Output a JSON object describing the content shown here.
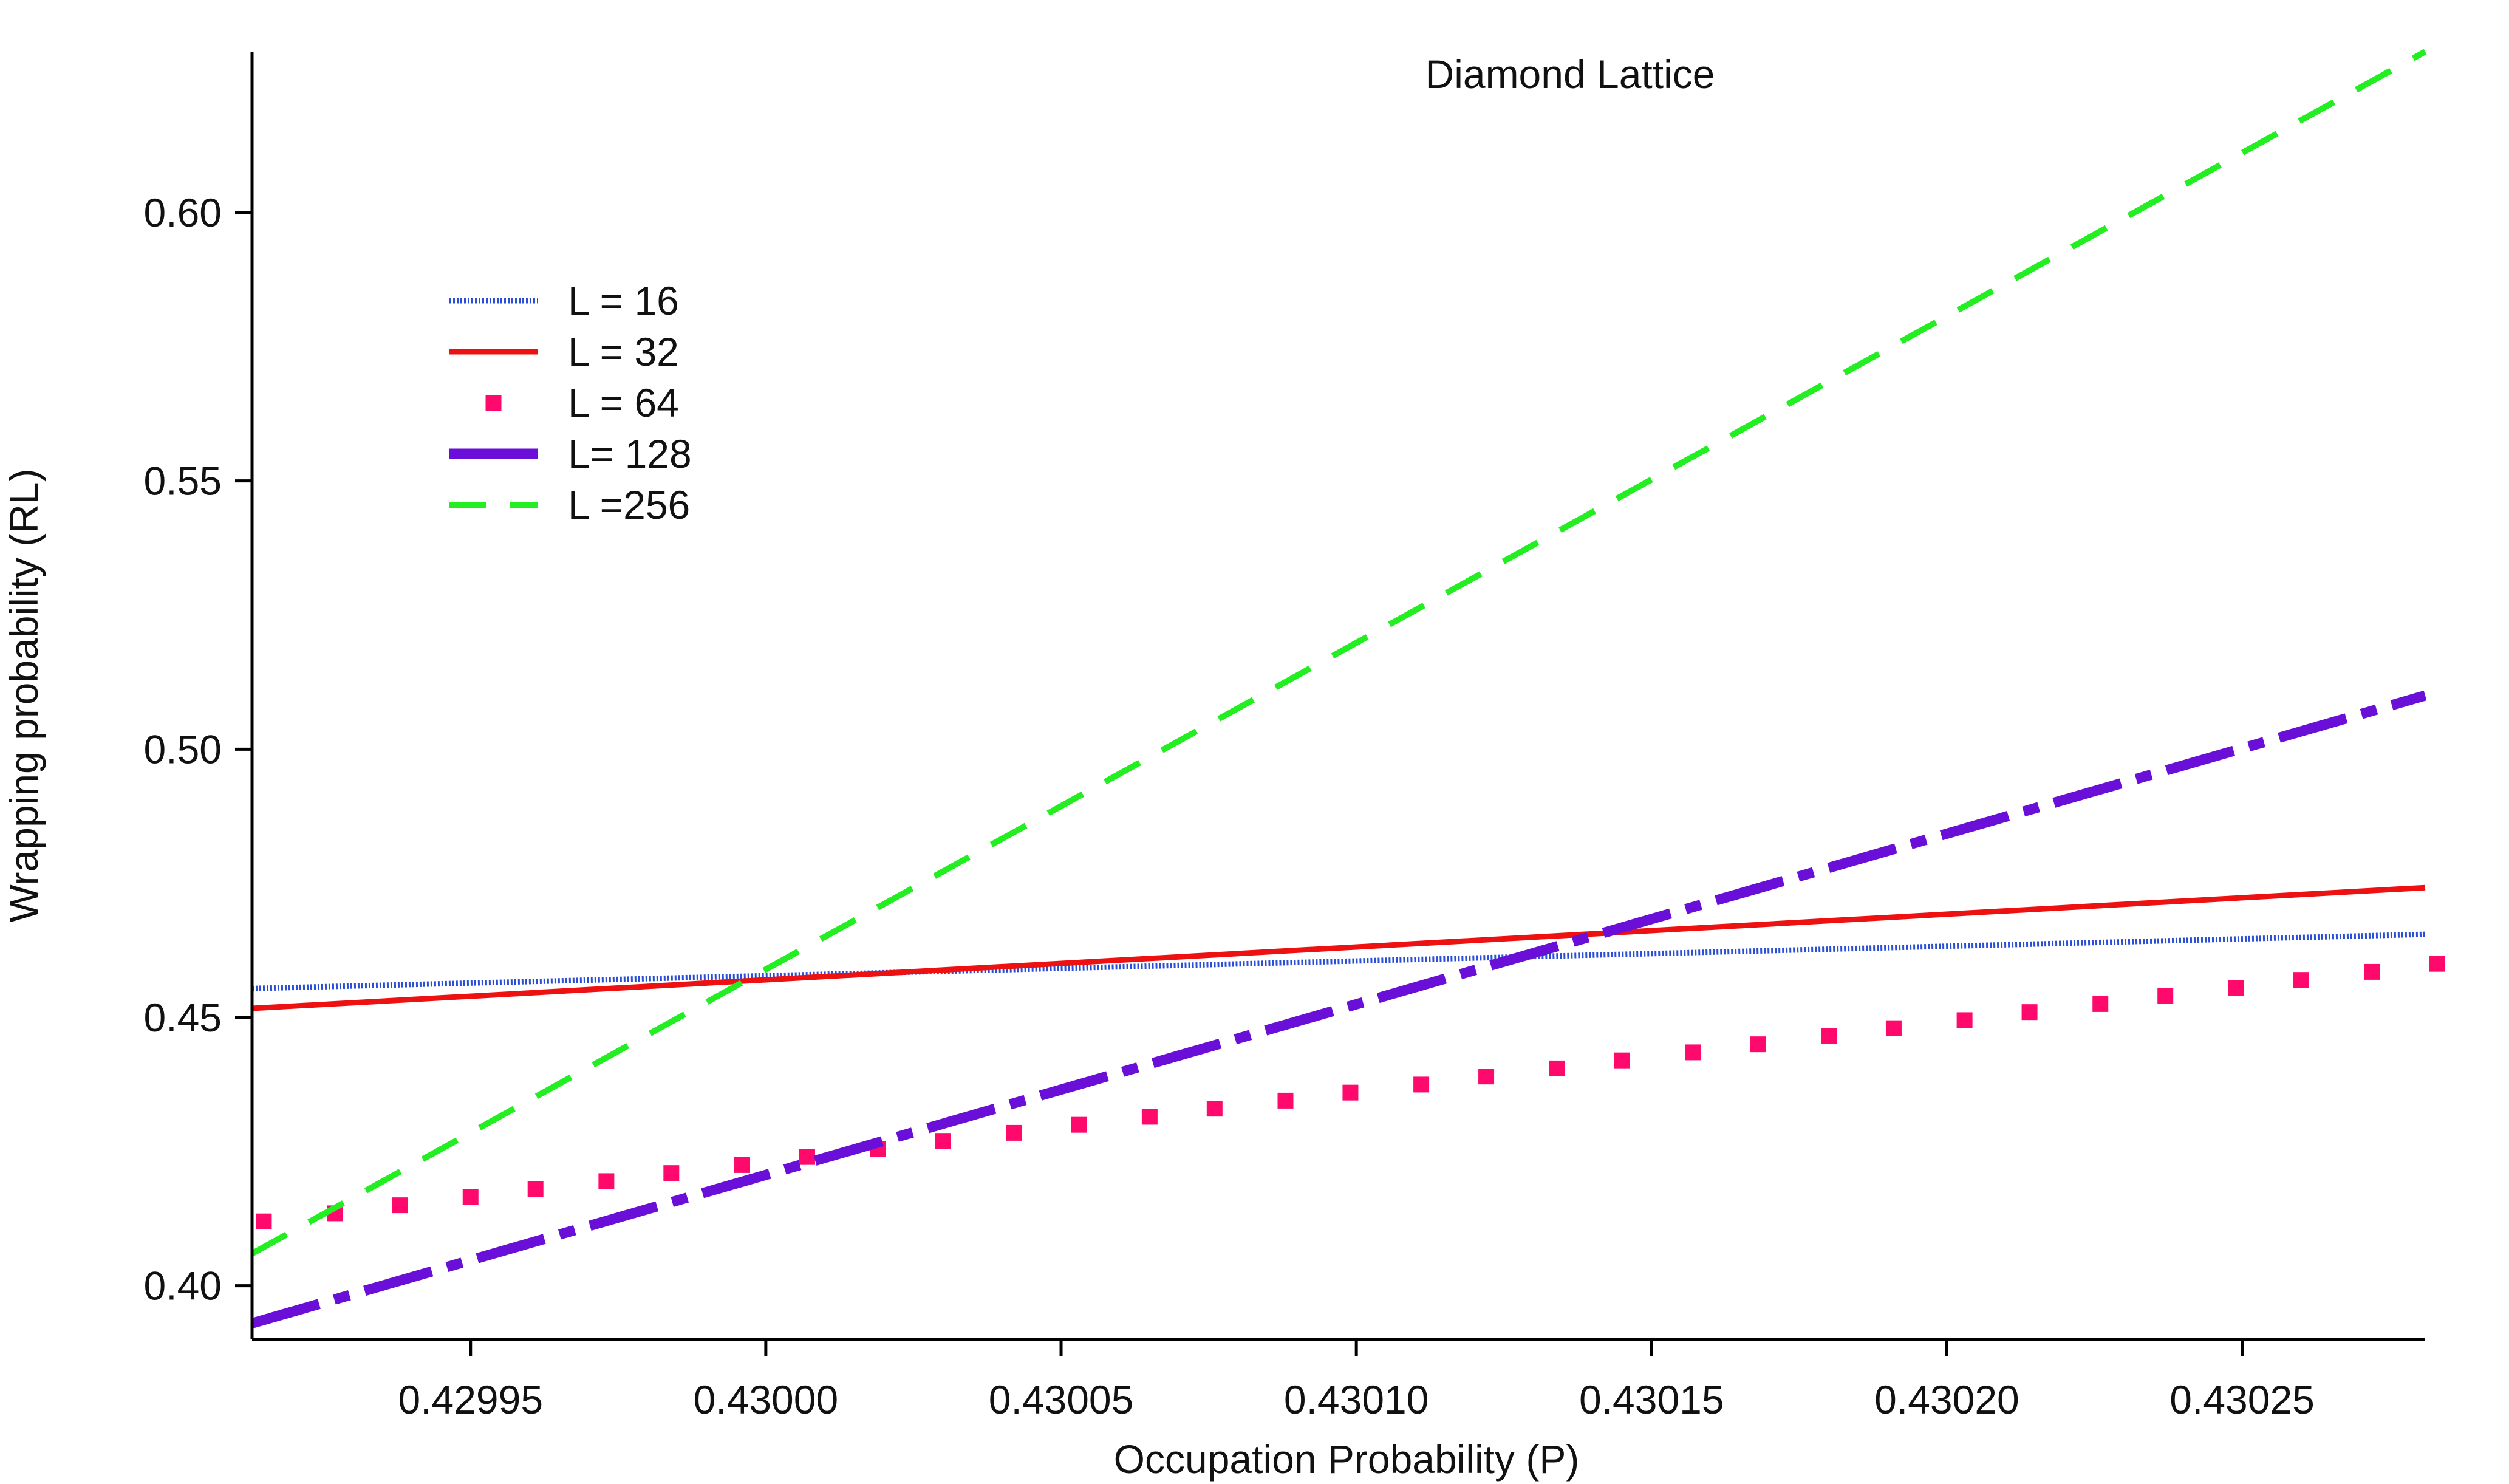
{
  "chart_data": {
    "type": "line",
    "title": "Diamond Lattice",
    "xlabel": "Occupation Probability (P)",
    "ylabel": "Wrapping probability (RL)",
    "xlim": [
      0.429913,
      0.430281
    ],
    "ylim": [
      0.39,
      0.63
    ],
    "xticks": [
      0.42995,
      0.43,
      0.43005,
      0.4301,
      0.43015,
      0.4302,
      0.43025
    ],
    "xtick_labels": [
      "0.42995",
      "0.43000",
      "0.43005",
      "0.43010",
      "0.43015",
      "0.43020",
      "0.43025"
    ],
    "yticks": [
      0.4,
      0.45,
      0.5,
      0.55,
      0.6
    ],
    "ytick_labels": [
      "0.40",
      "0.45",
      "0.50",
      "0.55",
      "0.60"
    ],
    "grid": false,
    "legend_position": "top-left",
    "series": [
      {
        "name": "L = 16",
        "style": "dotted",
        "color": "#2a4fd6",
        "x": [
          0.429913,
          0.430281
        ],
        "y": [
          0.4554,
          0.4655
        ]
      },
      {
        "name": "L = 32",
        "style": "solid",
        "color": "#ee1111",
        "x": [
          0.429913,
          0.430281
        ],
        "y": [
          0.4517,
          0.4742
        ]
      },
      {
        "name": "L = 64",
        "style": "markers",
        "color": "#ff0a6c",
        "x": [
          0.429915,
          0.429927,
          0.429938,
          0.42995,
          0.429961,
          0.429973,
          0.429984,
          0.429996,
          0.430007,
          0.430019,
          0.43003,
          0.430042,
          0.430053,
          0.430065,
          0.430076,
          0.430088,
          0.430099,
          0.430111,
          0.430122,
          0.430134,
          0.430145,
          0.430157,
          0.430168,
          0.43018,
          0.430191,
          0.430203,
          0.430214,
          0.430226,
          0.430237,
          0.430249,
          0.43026,
          0.430272,
          0.430283
        ],
        "y": [
          0.412,
          0.4135,
          0.415,
          0.4165,
          0.418,
          0.4195,
          0.421,
          0.4225,
          0.424,
          0.4255,
          0.427,
          0.4285,
          0.43,
          0.4315,
          0.433,
          0.4345,
          0.436,
          0.4375,
          0.439,
          0.4405,
          0.442,
          0.4435,
          0.445,
          0.4465,
          0.448,
          0.4495,
          0.451,
          0.4525,
          0.454,
          0.4555,
          0.457,
          0.4585,
          0.46
        ]
      },
      {
        "name": "L= 128",
        "style": "dash-dot",
        "color": "#6a0fd8",
        "x": [
          0.429913,
          0.430281
        ],
        "y": [
          0.393,
          0.51
        ]
      },
      {
        "name": "L =256",
        "style": "dashed",
        "color": "#22ee22",
        "x": [
          0.429913,
          0.430281
        ],
        "y": [
          0.406,
          0.63
        ]
      }
    ]
  }
}
